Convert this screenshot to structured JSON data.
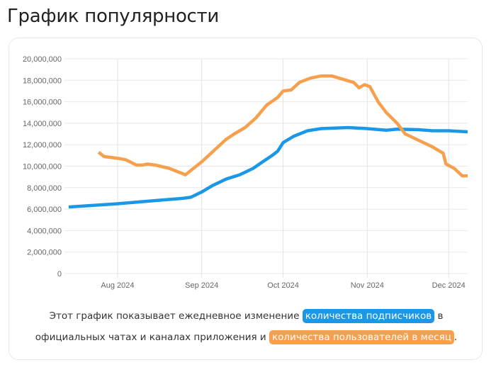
{
  "page_title": "График популярности",
  "caption": {
    "line1_text": "Этот график показывает ежедневное изменение",
    "line1_highlight": "количества подписчиков",
    "line1_end": "в",
    "line2_text": "официальных чатах и каналах приложения и",
    "line2_highlight": "количества пользователей в месяц",
    "line2_end": "."
  },
  "chart_data": {
    "type": "line",
    "title": "",
    "xlabel": "",
    "ylabel": "",
    "xlim": [
      "2024-07-14",
      "2024-12-08"
    ],
    "ylim": [
      0,
      20000000
    ],
    "grid": true,
    "legend": "none",
    "y_ticks": [
      "0",
      "2,000,000",
      "4,000,000",
      "6,000,000",
      "8,000,000",
      "10,000,000",
      "12,000,000",
      "14,000,000",
      "16,000,000",
      "18,000,000",
      "20,000,000"
    ],
    "x_ticks": [
      {
        "date": "2024-08-01",
        "label": "Aug 2024"
      },
      {
        "date": "2024-09-01",
        "label": "Sep 2024"
      },
      {
        "date": "2024-10-01",
        "label": "Oct 2024"
      },
      {
        "date": "2024-11-01",
        "label": "Nov 2024"
      },
      {
        "date": "2024-12-01",
        "label": "Dec 2024"
      }
    ],
    "series": [
      {
        "name": "количества подписчиков",
        "color": "#1a97e6",
        "points": [
          [
            "2024-07-14",
            6200000
          ],
          [
            "2024-08-01",
            6500000
          ],
          [
            "2024-08-15",
            6800000
          ],
          [
            "2024-08-25",
            7000000
          ],
          [
            "2024-08-28",
            7100000
          ],
          [
            "2024-09-01",
            7600000
          ],
          [
            "2024-09-05",
            8200000
          ],
          [
            "2024-09-10",
            8800000
          ],
          [
            "2024-09-15",
            9200000
          ],
          [
            "2024-09-20",
            9800000
          ],
          [
            "2024-09-24",
            10500000
          ],
          [
            "2024-09-27",
            11000000
          ],
          [
            "2024-09-29",
            11400000
          ],
          [
            "2024-10-01",
            12200000
          ],
          [
            "2024-10-05",
            12800000
          ],
          [
            "2024-10-10",
            13300000
          ],
          [
            "2024-10-15",
            13500000
          ],
          [
            "2024-10-20",
            13550000
          ],
          [
            "2024-10-25",
            13600000
          ],
          [
            "2024-11-01",
            13500000
          ],
          [
            "2024-11-08",
            13350000
          ],
          [
            "2024-11-12",
            13450000
          ],
          [
            "2024-11-20",
            13400000
          ],
          [
            "2024-11-25",
            13300000
          ],
          [
            "2024-12-01",
            13300000
          ],
          [
            "2024-12-08",
            13200000
          ]
        ]
      },
      {
        "name": "количества пользователей в месяц",
        "color": "#f6a04d",
        "points": [
          [
            "2024-07-25",
            11300000
          ],
          [
            "2024-07-27",
            10900000
          ],
          [
            "2024-07-30",
            10800000
          ],
          [
            "2024-08-02",
            10700000
          ],
          [
            "2024-08-04",
            10600000
          ],
          [
            "2024-08-08",
            10100000
          ],
          [
            "2024-08-10",
            10100000
          ],
          [
            "2024-08-12",
            10200000
          ],
          [
            "2024-08-15",
            10100000
          ],
          [
            "2024-08-20",
            9800000
          ],
          [
            "2024-08-23",
            9500000
          ],
          [
            "2024-08-26",
            9200000
          ],
          [
            "2024-09-01",
            10400000
          ],
          [
            "2024-09-10",
            12500000
          ],
          [
            "2024-09-13",
            13000000
          ],
          [
            "2024-09-17",
            13600000
          ],
          [
            "2024-09-21",
            14500000
          ],
          [
            "2024-09-25",
            15700000
          ],
          [
            "2024-09-29",
            16400000
          ],
          [
            "2024-10-01",
            17000000
          ],
          [
            "2024-10-04",
            17100000
          ],
          [
            "2024-10-07",
            17800000
          ],
          [
            "2024-10-11",
            18200000
          ],
          [
            "2024-10-15",
            18400000
          ],
          [
            "2024-10-19",
            18400000
          ],
          [
            "2024-10-23",
            18100000
          ],
          [
            "2024-10-27",
            17800000
          ],
          [
            "2024-10-29",
            17300000
          ],
          [
            "2024-10-31",
            17600000
          ],
          [
            "2024-11-02",
            17400000
          ],
          [
            "2024-11-05",
            16000000
          ],
          [
            "2024-11-08",
            15000000
          ],
          [
            "2024-11-12",
            14000000
          ],
          [
            "2024-11-15",
            13000000
          ],
          [
            "2024-11-20",
            12400000
          ],
          [
            "2024-11-25",
            11800000
          ],
          [
            "2024-11-29",
            11200000
          ],
          [
            "2024-11-30",
            10200000
          ],
          [
            "2024-12-03",
            9800000
          ],
          [
            "2024-12-06",
            9100000
          ],
          [
            "2024-12-08",
            9100000
          ]
        ]
      }
    ]
  }
}
